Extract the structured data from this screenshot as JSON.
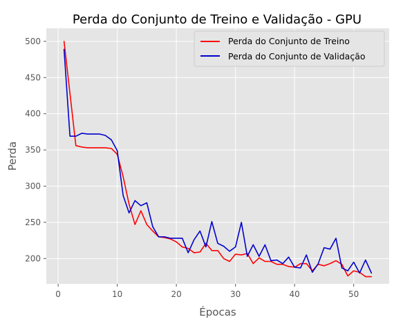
{
  "chart_data": {
    "type": "line",
    "title": "Perda do Conjunto de Treino e Validação - GPU",
    "xlabel": "Épocas",
    "ylabel": "Perda",
    "xlim": [
      -2,
      56
    ],
    "ylim": [
      165,
      518
    ],
    "xticks": [
      0,
      10,
      20,
      30,
      40,
      50
    ],
    "yticks": [
      200,
      250,
      300,
      350,
      400,
      450,
      500
    ],
    "grid": true,
    "legend_position": "top-right",
    "series": [
      {
        "name": "Perda do Conjunto de Treino",
        "color": "#ff0000",
        "x": [
          1,
          2,
          3,
          4,
          5,
          6,
          7,
          8,
          9,
          10,
          11,
          12,
          13,
          14,
          15,
          16,
          17,
          18,
          19,
          20,
          21,
          22,
          23,
          24,
          25,
          26,
          27,
          28,
          29,
          30,
          31,
          32,
          33,
          34,
          35,
          36,
          37,
          38,
          39,
          40,
          41,
          42,
          43,
          44,
          45,
          46,
          47,
          48,
          49,
          50,
          51,
          52,
          53
        ],
        "y": [
          500,
          428,
          356,
          354,
          353,
          353,
          353,
          353,
          352,
          344,
          313,
          275,
          247,
          266,
          247,
          238,
          230,
          229,
          227,
          223,
          216,
          214,
          208,
          209,
          221,
          211,
          211,
          200,
          196,
          206,
          205,
          207,
          193,
          201,
          196,
          196,
          192,
          192,
          189,
          188,
          193,
          193,
          183,
          192,
          190,
          193,
          197,
          192,
          176,
          183,
          181,
          175,
          175
        ]
      },
      {
        "name": "Perda do Conjunto de Validação",
        "color": "#0000cc",
        "x": [
          1,
          2,
          3,
          4,
          5,
          6,
          7,
          8,
          9,
          10,
          11,
          12,
          13,
          14,
          15,
          16,
          17,
          18,
          19,
          20,
          21,
          22,
          23,
          24,
          25,
          26,
          27,
          28,
          29,
          30,
          31,
          32,
          33,
          34,
          35,
          36,
          37,
          38,
          39,
          40,
          41,
          42,
          43,
          44,
          45,
          46,
          47,
          48,
          49,
          50,
          51,
          52,
          53
        ],
        "y": [
          489,
          369,
          369,
          373,
          372,
          372,
          372,
          370,
          364,
          349,
          287,
          263,
          280,
          273,
          277,
          244,
          230,
          230,
          228,
          228,
          228,
          208,
          226,
          238,
          216,
          251,
          221,
          217,
          210,
          216,
          250,
          203,
          219,
          203,
          219,
          197,
          198,
          193,
          202,
          188,
          187,
          205,
          181,
          193,
          215,
          213,
          228,
          187,
          183,
          195,
          180,
          198,
          180
        ]
      }
    ]
  }
}
